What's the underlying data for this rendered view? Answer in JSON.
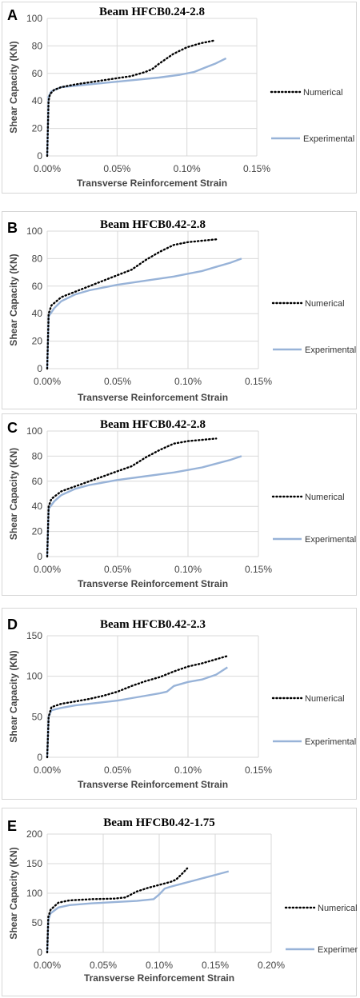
{
  "chart_data": [
    {
      "type": "line",
      "panel": "A",
      "title": "Beam HFCB0.24-2.8",
      "xlabel": "Transverse Reinforcement Strain",
      "ylabel": "Shear Capacity (KN)",
      "xlim": [
        0,
        0.0015
      ],
      "ylim": [
        0,
        100
      ],
      "xticks": [
        0,
        0.0005,
        0.001,
        0.0015
      ],
      "xtick_labels": [
        "0.00%",
        "0.05%",
        "0.10%",
        "0.15%"
      ],
      "yticks": [
        0,
        20,
        40,
        60,
        80,
        100
      ],
      "ytick_labels": [
        "0",
        "20",
        "40",
        "60",
        "80",
        "100"
      ],
      "grid": true,
      "legend_position": "right",
      "series": [
        {
          "name": "Numerical",
          "color": "#000000",
          "style": "dotted",
          "points": [
            [
              0,
              0
            ],
            [
              1e-05,
              40
            ],
            [
              2e-05,
              45
            ],
            [
              5e-05,
              48
            ],
            [
              0.0001,
              50
            ],
            [
              0.0002,
              52
            ],
            [
              0.0004,
              55
            ],
            [
              0.0006,
              58
            ],
            [
              0.0007,
              61
            ],
            [
              0.00075,
              63
            ],
            [
              0.0008,
              67
            ],
            [
              0.0009,
              74
            ],
            [
              0.001,
              79
            ],
            [
              0.0011,
              82
            ],
            [
              0.0012,
              84
            ]
          ]
        },
        {
          "name": "Experimental",
          "color": "#98b3d8",
          "style": "solid",
          "points": [
            [
              0,
              0
            ],
            [
              1e-05,
              43
            ],
            [
              3e-05,
              47
            ],
            [
              0.0001,
              50
            ],
            [
              0.0002,
              51
            ],
            [
              0.0004,
              53
            ],
            [
              0.0006,
              55
            ],
            [
              0.0008,
              57
            ],
            [
              0.00095,
              59
            ],
            [
              0.00105,
              61
            ],
            [
              0.0011,
              63
            ],
            [
              0.0012,
              67
            ],
            [
              0.00128,
              71
            ]
          ]
        }
      ]
    },
    {
      "type": "line",
      "panel": "B",
      "title": "Beam HFCB0.42-2.8",
      "xlabel": "Transverse Reinforcement Strain",
      "ylabel": "Shear Capacity (KN)",
      "xlim": [
        0,
        0.0015
      ],
      "ylim": [
        0,
        100
      ],
      "xticks": [
        0,
        0.0005,
        0.001,
        0.0015
      ],
      "xtick_labels": [
        "0.00%",
        "0.05%",
        "0.10%",
        "0.15%"
      ],
      "yticks": [
        0,
        20,
        40,
        60,
        80,
        100
      ],
      "ytick_labels": [
        "0",
        "20",
        "40",
        "60",
        "80",
        "100"
      ],
      "grid": true,
      "legend_position": "right",
      "series": [
        {
          "name": "Numerical",
          "color": "#000000",
          "style": "dotted",
          "points": [
            [
              0,
              0
            ],
            [
              1e-05,
              40
            ],
            [
              3e-05,
              46
            ],
            [
              0.0001,
              52
            ],
            [
              0.0002,
              56
            ],
            [
              0.0003,
              60
            ],
            [
              0.0004,
              64
            ],
            [
              0.0005,
              68
            ],
            [
              0.0006,
              72
            ],
            [
              0.0007,
              79
            ],
            [
              0.0008,
              85
            ],
            [
              0.0009,
              90
            ],
            [
              0.001,
              92
            ],
            [
              0.0011,
              93
            ],
            [
              0.0012,
              94
            ]
          ]
        },
        {
          "name": "Experimental",
          "color": "#98b3d8",
          "style": "solid",
          "points": [
            [
              0,
              0
            ],
            [
              1e-05,
              38
            ],
            [
              5e-05,
              44
            ],
            [
              0.0001,
              49
            ],
            [
              0.0002,
              54
            ],
            [
              0.0003,
              57
            ],
            [
              0.0005,
              61
            ],
            [
              0.0007,
              64
            ],
            [
              0.0009,
              67
            ],
            [
              0.001,
              69
            ],
            [
              0.0011,
              71
            ],
            [
              0.0012,
              74
            ],
            [
              0.0013,
              77
            ],
            [
              0.00138,
              80
            ]
          ]
        }
      ]
    },
    {
      "type": "line",
      "panel": "C",
      "title": "Beam HFCB0.42-2.8",
      "xlabel": "Transverse Reinforcement Strain",
      "ylabel": "Shear Capacity (KN)",
      "xlim": [
        0,
        0.0015
      ],
      "ylim": [
        0,
        100
      ],
      "xticks": [
        0,
        0.0005,
        0.001,
        0.0015
      ],
      "xtick_labels": [
        "0.00%",
        "0.05%",
        "0.10%",
        "0.15%"
      ],
      "yticks": [
        0,
        20,
        40,
        60,
        80,
        100
      ],
      "ytick_labels": [
        "0",
        "20",
        "40",
        "60",
        "80",
        "100"
      ],
      "grid": true,
      "legend_position": "right",
      "series": [
        {
          "name": "Numerical",
          "color": "#000000",
          "style": "dotted",
          "points": [
            [
              0,
              0
            ],
            [
              1e-05,
              40
            ],
            [
              3e-05,
              46
            ],
            [
              0.0001,
              52
            ],
            [
              0.0002,
              56
            ],
            [
              0.0003,
              60
            ],
            [
              0.0004,
              64
            ],
            [
              0.0005,
              68
            ],
            [
              0.0006,
              72
            ],
            [
              0.0007,
              79
            ],
            [
              0.0008,
              85
            ],
            [
              0.0009,
              90
            ],
            [
              0.001,
              92
            ],
            [
              0.0011,
              93
            ],
            [
              0.0012,
              94
            ]
          ]
        },
        {
          "name": "Experimental",
          "color": "#98b3d8",
          "style": "solid",
          "points": [
            [
              0,
              0
            ],
            [
              1e-05,
              38
            ],
            [
              5e-05,
              44
            ],
            [
              0.0001,
              49
            ],
            [
              0.0002,
              54
            ],
            [
              0.0003,
              57
            ],
            [
              0.0005,
              61
            ],
            [
              0.0007,
              64
            ],
            [
              0.0009,
              67
            ],
            [
              0.001,
              69
            ],
            [
              0.0011,
              71
            ],
            [
              0.0012,
              74
            ],
            [
              0.0013,
              77
            ],
            [
              0.00138,
              80
            ]
          ]
        }
      ]
    },
    {
      "type": "line",
      "panel": "D",
      "title": "Beam HFCB0.42-2.3",
      "xlabel": "Transverse Reinforcement Strain",
      "ylabel": "Shear Capacity (KN)",
      "xlim": [
        0,
        0.0015
      ],
      "ylim": [
        0,
        150
      ],
      "xticks": [
        0,
        0.0005,
        0.001,
        0.0015
      ],
      "xtick_labels": [
        "0.00%",
        "0.05%",
        "0.10%",
        "0.15%"
      ],
      "yticks": [
        0,
        50,
        100,
        150
      ],
      "ytick_labels": [
        "0",
        "50",
        "100",
        "150"
      ],
      "grid": true,
      "legend_position": "right",
      "series": [
        {
          "name": "Numerical",
          "color": "#000000",
          "style": "dotted",
          "points": [
            [
              0,
              0
            ],
            [
              1e-05,
              50
            ],
            [
              3e-05,
              62
            ],
            [
              0.0001,
              66
            ],
            [
              0.0002,
              69
            ],
            [
              0.0003,
              72
            ],
            [
              0.0004,
              76
            ],
            [
              0.0005,
              81
            ],
            [
              0.0006,
              88
            ],
            [
              0.0007,
              94
            ],
            [
              0.0008,
              99
            ],
            [
              0.0009,
              106
            ],
            [
              0.001,
              112
            ],
            [
              0.0011,
              116
            ],
            [
              0.0012,
              121
            ],
            [
              0.00128,
              125
            ]
          ]
        },
        {
          "name": "Experimental",
          "color": "#98b3d8",
          "style": "solid",
          "points": [
            [
              0,
              0
            ],
            [
              1e-05,
              50
            ],
            [
              3e-05,
              58
            ],
            [
              0.0001,
              61
            ],
            [
              0.0002,
              64
            ],
            [
              0.0003,
              66
            ],
            [
              0.0004,
              68
            ],
            [
              0.0005,
              70
            ],
            [
              0.0006,
              73
            ],
            [
              0.0007,
              76
            ],
            [
              0.0008,
              79
            ],
            [
              0.00085,
              81
            ],
            [
              0.0009,
              88
            ],
            [
              0.001,
              93
            ],
            [
              0.0011,
              96
            ],
            [
              0.0012,
              102
            ],
            [
              0.00128,
              111
            ]
          ]
        }
      ]
    },
    {
      "type": "line",
      "panel": "E",
      "title": "Beam HFCB0.42-1.75",
      "xlabel": "Transverse Reinforcement Strain",
      "ylabel": "Shear Capacity (KN)",
      "xlim": [
        0,
        0.002
      ],
      "ylim": [
        0,
        200
      ],
      "xticks": [
        0,
        0.0005,
        0.001,
        0.0015,
        0.002
      ],
      "xtick_labels": [
        "0.00%",
        "0.05%",
        "0.10%",
        "0.15%",
        "0.20%"
      ],
      "yticks": [
        0,
        50,
        100,
        150,
        200
      ],
      "ytick_labels": [
        "0",
        "50",
        "100",
        "150",
        "200"
      ],
      "grid": true,
      "legend_position": "right",
      "series": [
        {
          "name": "Numerical",
          "color": "#000000",
          "style": "dotted",
          "points": [
            [
              0,
              0
            ],
            [
              1e-05,
              60
            ],
            [
              3e-05,
              72
            ],
            [
              0.0001,
              84
            ],
            [
              0.0002,
              88
            ],
            [
              0.0004,
              90
            ],
            [
              0.0006,
              91
            ],
            [
              0.0007,
              93
            ],
            [
              0.0008,
              103
            ],
            [
              0.0009,
              109
            ],
            [
              0.001,
              114
            ],
            [
              0.0011,
              119
            ],
            [
              0.00115,
              123
            ],
            [
              0.0012,
              132
            ],
            [
              0.00125,
              142
            ]
          ]
        },
        {
          "name": "Experimental",
          "color": "#98b3d8",
          "style": "solid",
          "points": [
            [
              0,
              0
            ],
            [
              1e-05,
              55
            ],
            [
              3e-05,
              66
            ],
            [
              0.0001,
              76
            ],
            [
              0.0002,
              80
            ],
            [
              0.0004,
              83
            ],
            [
              0.0006,
              85
            ],
            [
              0.0008,
              87
            ],
            [
              0.00095,
              90
            ],
            [
              0.001,
              98
            ],
            [
              0.00105,
              108
            ],
            [
              0.0011,
              111
            ],
            [
              0.0012,
              116
            ],
            [
              0.0013,
              121
            ],
            [
              0.0014,
              126
            ],
            [
              0.0015,
              131
            ],
            [
              0.00162,
              137
            ]
          ]
        }
      ]
    }
  ]
}
